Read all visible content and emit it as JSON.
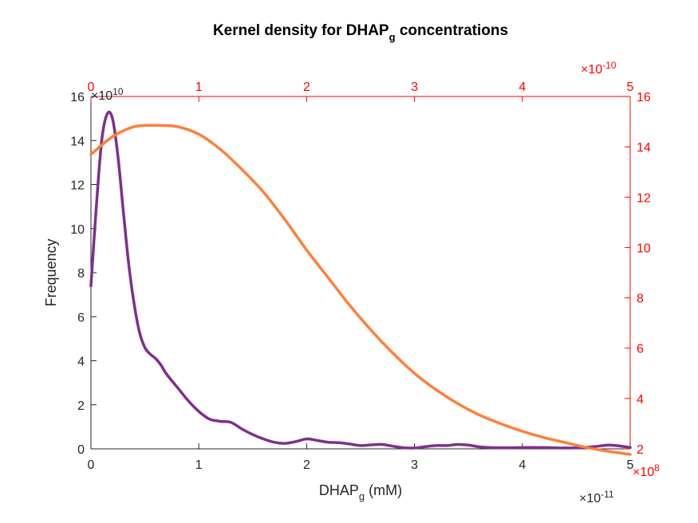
{
  "chart_data": {
    "type": "line",
    "title": "Kernel density for DHAP",
    "title_sub": "g",
    "title_suffix": " concentrations",
    "xlabel": "DHAP",
    "xlabel_sub": "g",
    "xlabel_suffix": " (mM)",
    "ylabel": "Frequency",
    "grid": false,
    "axes": {
      "bottom": {
        "xlim": [
          0,
          5
        ],
        "ticks": [
          "0",
          "1",
          "2",
          "3",
          "4",
          "5"
        ],
        "multiplier": "×10",
        "multiplier_exp": "-11"
      },
      "left": {
        "ylim": [
          0,
          16
        ],
        "ticks": [
          "0",
          "2",
          "4",
          "6",
          "8",
          "10",
          "12",
          "14",
          "16"
        ],
        "multiplier": "×10",
        "multiplier_exp": "10"
      },
      "top": {
        "xlim": [
          0,
          5
        ],
        "ticks": [
          "0",
          "1",
          "2",
          "3",
          "4",
          "5"
        ],
        "multiplier": "×10",
        "multiplier_exp": "-10",
        "color": "#ff0000"
      },
      "right": {
        "ylim": [
          2,
          16
        ],
        "ticks": [
          "2",
          "4",
          "6",
          "8",
          "10",
          "12",
          "14",
          "16"
        ],
        "multiplier": "×10",
        "multiplier_exp": "8",
        "color": "#ff0000"
      }
    },
    "series": [
      {
        "color": "#7e2f8e",
        "axes": "bottom-left",
        "x": [
          0,
          0.05,
          0.1,
          0.15,
          0.2,
          0.25,
          0.3,
          0.35,
          0.4,
          0.45,
          0.5,
          0.55,
          0.6,
          0.65,
          0.7,
          0.8,
          0.9,
          1.0,
          1.1,
          1.2,
          1.3,
          1.4,
          1.5,
          1.6,
          1.7,
          1.8,
          1.9,
          2.0,
          2.1,
          2.2,
          2.3,
          2.4,
          2.5,
          2.6,
          2.7,
          2.8,
          2.9,
          3.0,
          3.1,
          3.2,
          3.3,
          3.4,
          3.5,
          3.6,
          3.7,
          3.8,
          3.9,
          4.0,
          4.2,
          4.4,
          4.6,
          4.7,
          4.8,
          4.9,
          5.0
        ],
        "y": [
          7.4,
          11.0,
          14.0,
          15.2,
          15.0,
          13.3,
          10.8,
          8.4,
          6.6,
          5.3,
          4.6,
          4.3,
          4.1,
          3.8,
          3.4,
          2.8,
          2.2,
          1.7,
          1.35,
          1.25,
          1.2,
          0.9,
          0.65,
          0.45,
          0.3,
          0.25,
          0.33,
          0.45,
          0.38,
          0.3,
          0.28,
          0.22,
          0.15,
          0.18,
          0.2,
          0.12,
          0.05,
          0.04,
          0.1,
          0.15,
          0.15,
          0.2,
          0.17,
          0.09,
          0.06,
          0.05,
          0.05,
          0.06,
          0.06,
          0.04,
          0.07,
          0.12,
          0.17,
          0.13,
          0.06
        ]
      },
      {
        "color": "#ff7f3a",
        "axes": "top-right",
        "x": [
          0,
          0.2,
          0.4,
          0.6,
          0.8,
          1.0,
          1.2,
          1.4,
          1.6,
          1.8,
          2.0,
          2.2,
          2.4,
          2.6,
          2.8,
          3.0,
          3.2,
          3.4,
          3.6,
          3.8,
          4.0,
          4.2,
          4.4,
          4.6,
          4.8,
          5.0
        ],
        "y": [
          13.7,
          14.4,
          14.8,
          14.85,
          14.8,
          14.5,
          13.9,
          13.1,
          12.2,
          11.1,
          9.9,
          8.8,
          7.7,
          6.7,
          5.8,
          5.0,
          4.35,
          3.8,
          3.35,
          3.0,
          2.7,
          2.45,
          2.25,
          2.05,
          1.9,
          1.78
        ]
      }
    ]
  }
}
